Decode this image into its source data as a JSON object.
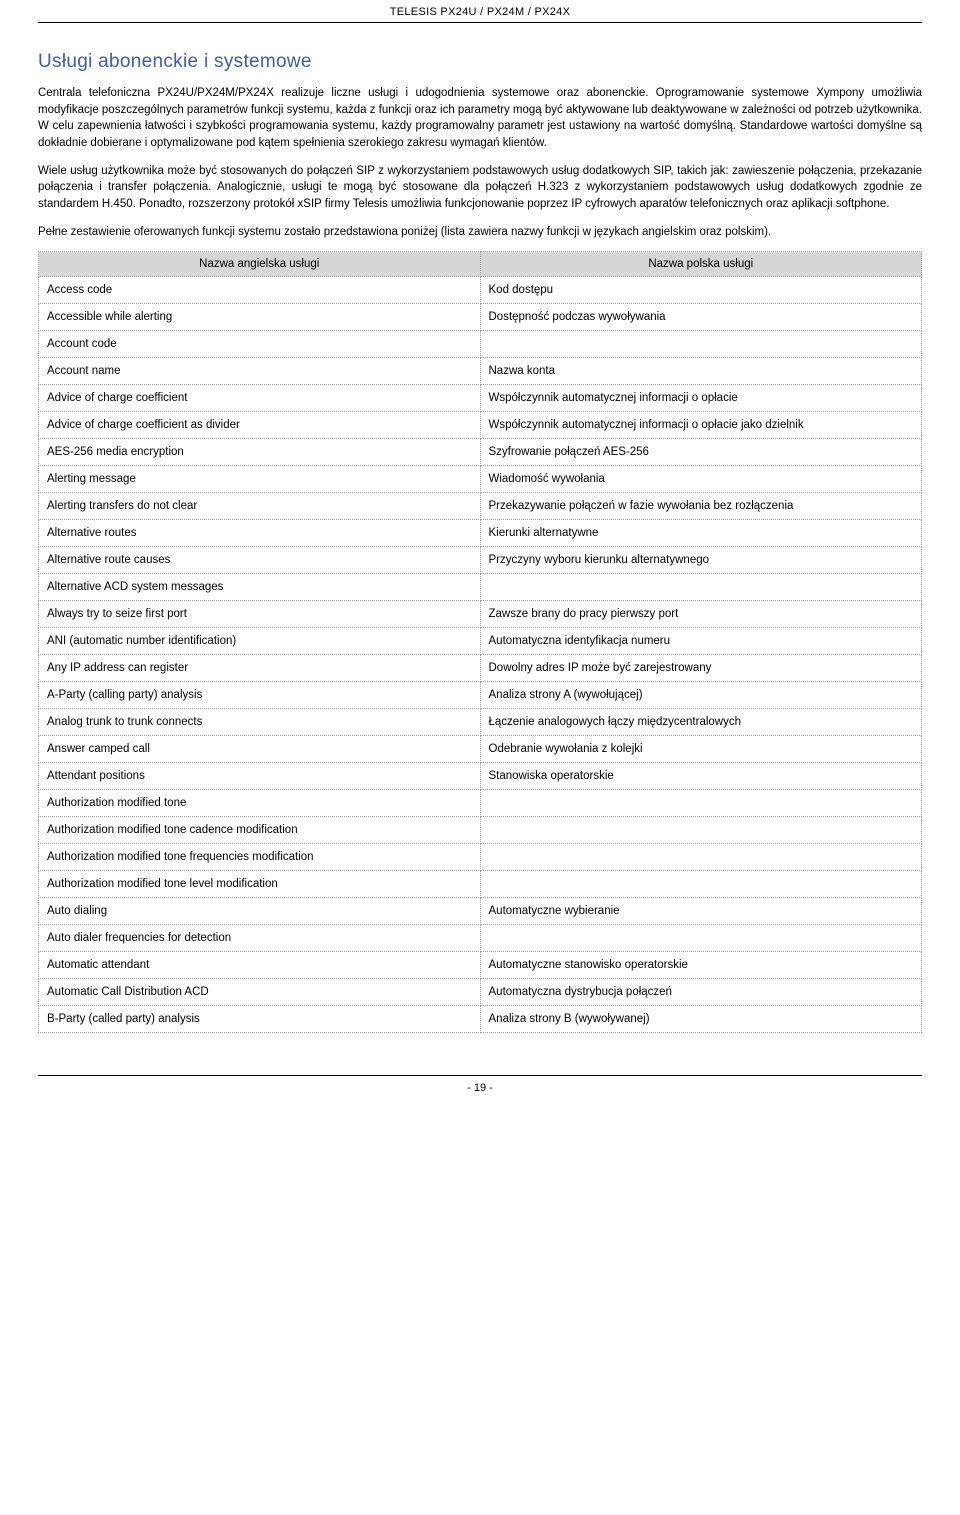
{
  "header": "TELESIS PX24U / PX24M / PX24X",
  "title": "Usługi abonenckie i systemowe",
  "paragraphs": [
    "Centrala telefoniczna PX24U/PX24M/PX24X realizuje liczne usługi i udogodnienia systemowe oraz abonenckie. Oprogramowanie systemowe Xympony umożliwia modyfikacje poszczególnych parametrów funkcji systemu, każda z funkcji oraz ich parametry mogą być aktywowane lub deaktywowane w zależności od potrzeb użytkownika. W celu zapewnienia łatwości i szybkości programowania systemu, każdy programowalny parametr jest ustawiony na wartość domyślną. Standardowe wartości domyślne są dokładnie dobierane i optymalizowane pod kątem spełnienia szerokiego zakresu wymagań klientów.",
    "Wiele usług użytkownika może być stosowanych do połączeń SIP z wykorzystaniem podstawowych usług dodatkowych SIP, takich jak: zawieszenie połączenia, przekazanie połączenia i transfer połączenia. Analogicznie, usługi te mogą być stosowane dla połączeń H.323 z wykorzystaniem podstawowych usług dodatkowych zgodnie ze standardem H.450. Ponadto, rozszerzony protokół xSIP firmy Telesis umożliwia funkcjonowanie poprzez IP cyfrowych aparatów telefonicznych oraz aplikacji softphone.",
    "Pełne zestawienie oferowanych funkcji systemu zostało przedstawiona poniżej (lista zawiera nazwy funkcji w językach angielskim oraz polskim)."
  ],
  "table": {
    "col_en": "Nazwa angielska usługi",
    "col_pl": "Nazwa polska usługi",
    "rows": [
      {
        "en": "Access code",
        "pl": "Kod dostępu"
      },
      {
        "en": "Accessible while alerting",
        "pl": "Dostępność podczas wywoływania"
      },
      {
        "en": "Account code",
        "pl": ""
      },
      {
        "en": "Account name",
        "pl": "Nazwa konta"
      },
      {
        "en": "Advice of charge coefficient",
        "pl": "Współczynnik automatycznej informacji o opłacie"
      },
      {
        "en": "Advice of charge coefficient as divider",
        "pl": "Współczynnik automatycznej informacji o opłacie jako dzielnik"
      },
      {
        "en": "AES-256 media encryption",
        "pl": "Szyfrowanie połączeń AES-256"
      },
      {
        "en": "Alerting message",
        "pl": "Wiadomość wywołania"
      },
      {
        "en": "Alerting transfers do not clear",
        "pl": "Przekazywanie połączeń w fazie wywołania bez rozłączenia"
      },
      {
        "en": "Alternative routes",
        "pl": "Kierunki alternatywne"
      },
      {
        "en": "Alternative route causes",
        "pl": "Przyczyny wyboru kierunku alternatywnego"
      },
      {
        "en": "Alternative ACD system messages",
        "pl": ""
      },
      {
        "en": "Always try to seize first port",
        "pl": "Zawsze brany do pracy pierwszy port"
      },
      {
        "en": "ANI (automatic number identification)",
        "pl": "Automatyczna identyfikacja numeru"
      },
      {
        "en": "Any IP address can register",
        "pl": "Dowolny adres IP może być zarejestrowany"
      },
      {
        "en": "A-Party (calling party) analysis",
        "pl": "Analiza strony A (wywołującej)"
      },
      {
        "en": "Analog trunk to trunk connects",
        "pl": "Łączenie analogowych łączy międzycentralowych"
      },
      {
        "en": "Answer camped call",
        "pl": "Odebranie wywołania z kolejki"
      },
      {
        "en": "Attendant positions",
        "pl": "Stanowiska operatorskie"
      },
      {
        "en": "Authorization modified tone",
        "pl": ""
      },
      {
        "en": "Authorization modified tone cadence modification",
        "pl": ""
      },
      {
        "en": "Authorization modified tone frequencies modification",
        "pl": ""
      },
      {
        "en": "Authorization modified tone level modification",
        "pl": ""
      },
      {
        "en": "Auto dialing",
        "pl": "Automatyczne wybieranie"
      },
      {
        "en": "Auto dialer frequencies for detection",
        "pl": ""
      },
      {
        "en": "Automatic attendant",
        "pl": "Automatyczne stanowisko operatorskie"
      },
      {
        "en": "Automatic Call Distribution ACD",
        "pl": "Automatyczna dystrybucja połączeń"
      },
      {
        "en": "B-Party (called party) analysis",
        "pl": "Analiza strony B (wywoływanej)"
      }
    ]
  },
  "page_number": "- 19 -"
}
